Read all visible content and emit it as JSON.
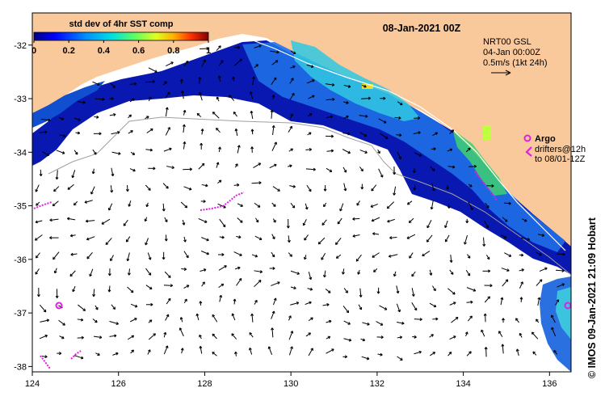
{
  "title": "08-Jan-2021 00Z",
  "colorbar": {
    "label": "std dev of 4hr SST comp",
    "ticks": [
      "0",
      "0.2",
      "0.4",
      "0.6",
      "0.8",
      "1"
    ],
    "colors": [
      "#000080",
      "#0000ff",
      "#0080ff",
      "#00ffff",
      "#40ff80",
      "#c0ff40",
      "#ffff00",
      "#ff8000",
      "#ff0000",
      "#800000"
    ]
  },
  "current_legend": {
    "line1": "NRT00 GSL",
    "line2": "04-Jan 00:00Z",
    "line3": "0.5m/s (1kt 24h)"
  },
  "argo_legend": {
    "label": "Argo",
    "line1": "drifters@12h",
    "line2": "to 08/01-12Z"
  },
  "credit": "© IMOS 09-Jan-2021 21:09 Hobart",
  "axes": {
    "x_ticks": [
      "124",
      "126",
      "128",
      "130",
      "132",
      "134",
      "136"
    ],
    "y_ticks": [
      "-32",
      "-33",
      "-34",
      "-35",
      "-36",
      "-37",
      "-38"
    ],
    "lon_range": [
      124,
      136.5
    ],
    "lat_range": [
      -38.1,
      -31.4
    ]
  },
  "colors": {
    "land": "#f9c89b",
    "ocean": "#ffffff",
    "argo": "#e020e0",
    "contour": "#a0a0a0"
  }
}
